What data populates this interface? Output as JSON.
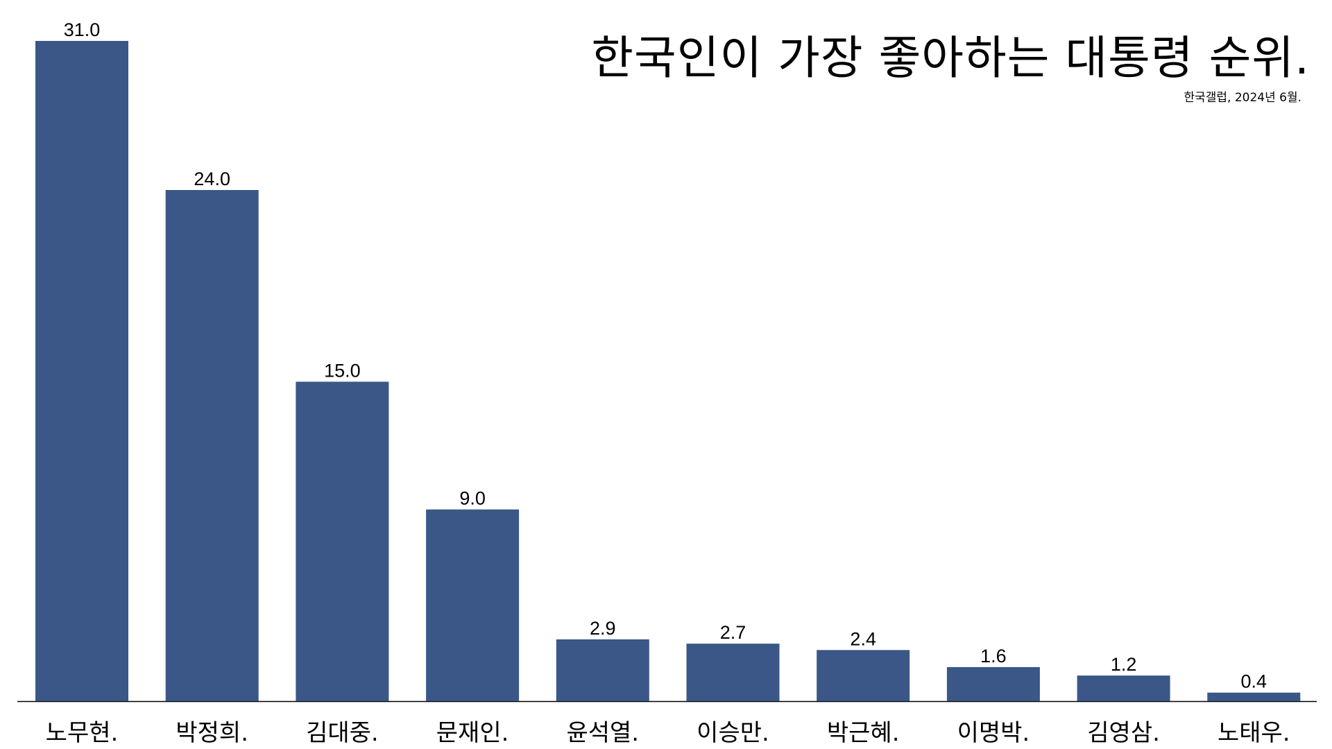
{
  "chart_data": {
    "type": "bar",
    "title": "한국인이 가장 좋아하는 대통령 순위.",
    "subtitle": "한국갤럽, 2024년 6월.",
    "categories": [
      "노무현.",
      "박정희.",
      "김대중.",
      "문재인.",
      "윤석열.",
      "이승만.",
      "박근혜.",
      "이명박.",
      "김영삼.",
      "노태우."
    ],
    "values": [
      31.0,
      24.0,
      15.0,
      9.0,
      2.9,
      2.7,
      2.4,
      1.6,
      1.2,
      0.4
    ],
    "value_labels": [
      "31.0",
      "24.0",
      "15.0",
      "9.0",
      "2.9",
      "2.7",
      "2.4",
      "1.6",
      "1.2",
      "0.4"
    ],
    "ylim": [
      0,
      31
    ],
    "grid": false,
    "bar_color": "#3a5787"
  }
}
